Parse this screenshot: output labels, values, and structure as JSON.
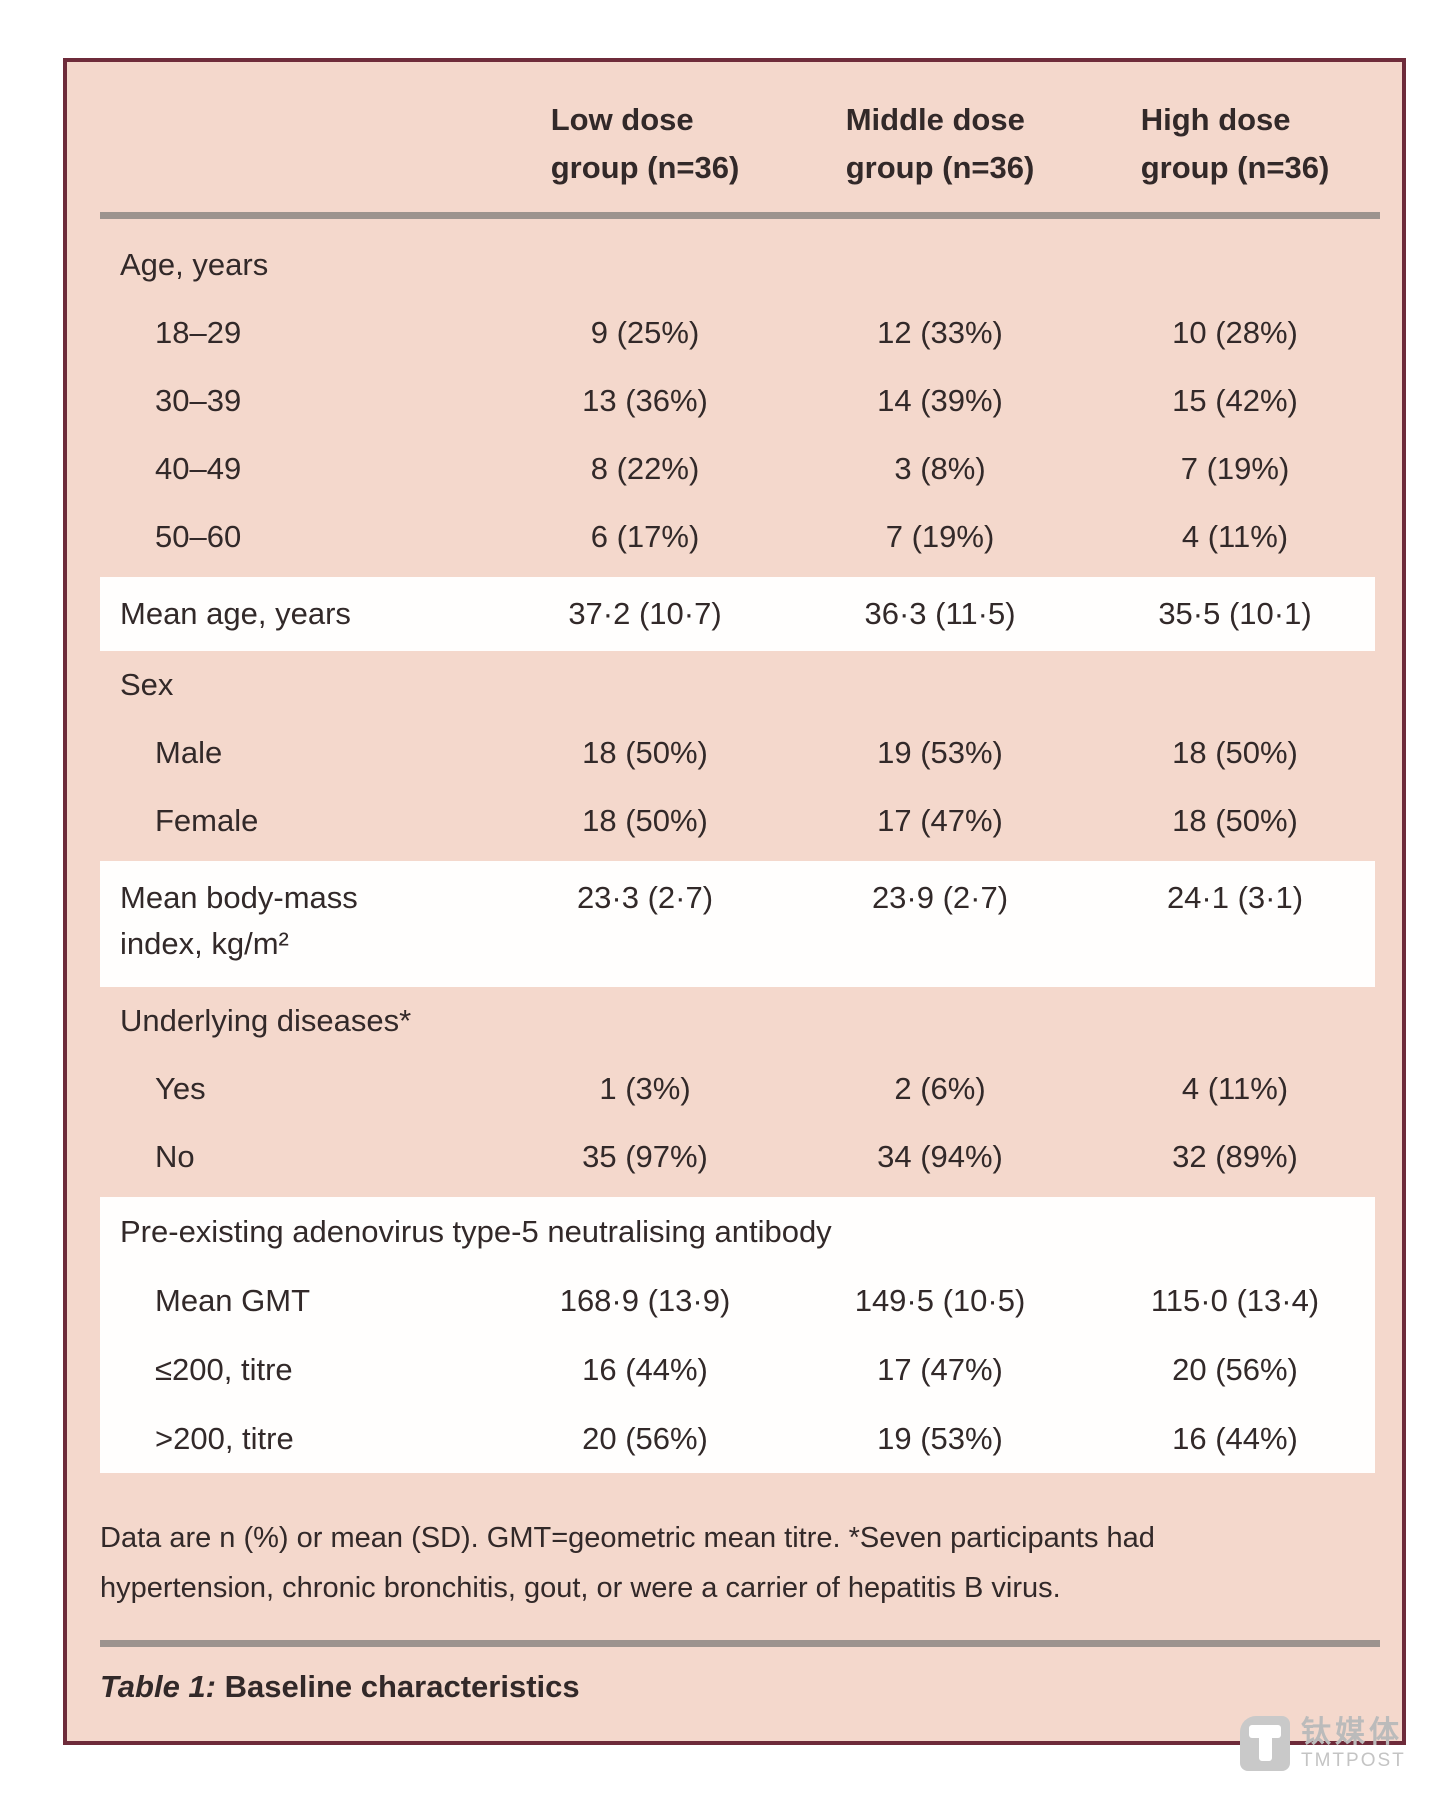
{
  "table": {
    "header": {
      "columns": [
        {
          "line1": "Low dose",
          "line2": "group (n=36)"
        },
        {
          "line1": "Middle dose",
          "line2": "group (n=36)"
        },
        {
          "line1": "High dose",
          "line2": "group (n=36)"
        }
      ]
    },
    "sections": [
      {
        "highlight": false,
        "rows": [
          {
            "label": "Age, years",
            "indent": 0,
            "values": null
          },
          {
            "label": "18–29",
            "indent": 1,
            "values": [
              "9 (25%)",
              "12 (33%)",
              "10 (28%)"
            ]
          },
          {
            "label": "30–39",
            "indent": 1,
            "values": [
              "13 (36%)",
              "14 (39%)",
              "15 (42%)"
            ]
          },
          {
            "label": "40–49",
            "indent": 1,
            "values": [
              "8 (22%)",
              "3 (8%)",
              "7 (19%)"
            ]
          },
          {
            "label": "50–60",
            "indent": 1,
            "values": [
              "6 (17%)",
              "7 (19%)",
              "4 (11%)"
            ]
          }
        ]
      },
      {
        "highlight": true,
        "rows": [
          {
            "label": "Mean age, years",
            "indent": 0,
            "values": [
              "37·2 (10·7)",
              "36·3 (11·5)",
              "35·5 (10·1)"
            ]
          }
        ]
      },
      {
        "highlight": false,
        "rows": [
          {
            "label": "Sex",
            "indent": 0,
            "values": null
          },
          {
            "label": "Male",
            "indent": 1,
            "values": [
              "18 (50%)",
              "19 (53%)",
              "18 (50%)"
            ]
          },
          {
            "label": "Female",
            "indent": 1,
            "values": [
              "18 (50%)",
              "17 (47%)",
              "18 (50%)"
            ]
          }
        ]
      },
      {
        "highlight": true,
        "rows": [
          {
            "label": "Mean body-mass index, kg/m²",
            "label_lines": [
              "Mean body-mass",
              "index, kg/m²"
            ],
            "indent": 0,
            "two_line": true,
            "values": [
              "23·3 (2·7)",
              "23·9 (2·7)",
              "24·1 (3·1)"
            ]
          }
        ]
      },
      {
        "highlight": false,
        "rows": [
          {
            "label": "Underlying diseases*",
            "indent": 0,
            "values": null
          },
          {
            "label": "Yes",
            "indent": 1,
            "values": [
              "1 (3%)",
              "2 (6%)",
              "4 (11%)"
            ]
          },
          {
            "label": "No",
            "indent": 1,
            "values": [
              "35 (97%)",
              "34 (94%)",
              "32 (89%)"
            ]
          }
        ]
      },
      {
        "highlight": true,
        "rows": [
          {
            "label": "Pre-existing adenovirus type-5 neutralising antibody",
            "indent": 0,
            "span": true,
            "values": null
          },
          {
            "label": "Mean GMT",
            "indent": 1,
            "values": [
              "168·9 (13·9)",
              "149·5 (10·5)",
              "115·0 (13·4)"
            ]
          },
          {
            "label": "≤200, titre",
            "indent": 1,
            "values": [
              "16 (44%)",
              "17 (47%)",
              "20 (56%)"
            ]
          },
          {
            "label": ">200, titre",
            "indent": 1,
            "values": [
              "20 (56%)",
              "19 (53%)",
              "16 (44%)"
            ]
          }
        ]
      }
    ],
    "footnote": {
      "line1": "Data are n (%) or mean (SD). GMT=geometric mean titre. *Seven participants had",
      "line2": "hypertension, chronic bronchitis, gout, or were a carrier of hepatitis B virus."
    },
    "caption": {
      "prefix": "Table 1:",
      "title": "Baseline characteristics"
    }
  },
  "watermark": {
    "cjk": "钛媒体",
    "latin": "TMTPOST"
  },
  "colors": {
    "table_background": "#f4d8cc",
    "table_border": "#6e2b3a",
    "rule_gray": "#9c938e",
    "text": "#322929",
    "highlight_band": "#fffefd",
    "watermark_gray": "#c3c3c3"
  }
}
